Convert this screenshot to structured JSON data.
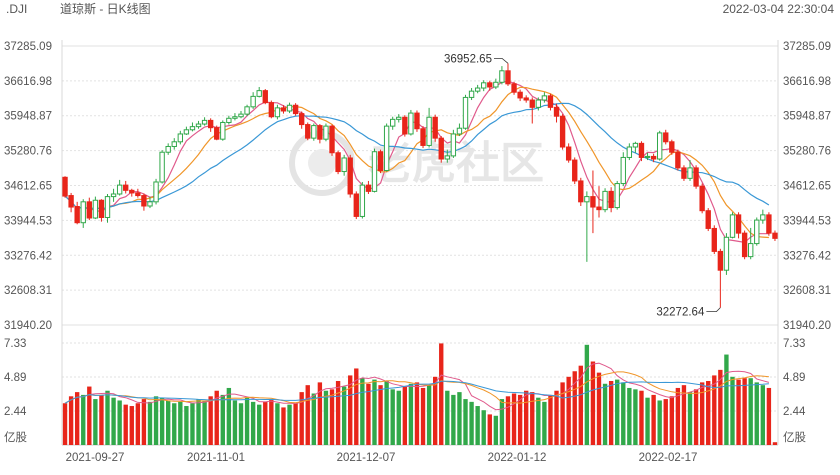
{
  "header": {
    "ticker": ".DJI",
    "name": "道琼斯 - 日K线图",
    "timestamp": "2022-03-04 22:30:04"
  },
  "watermark": "老虎社区",
  "colors": {
    "up": "#31a84a",
    "down": "#e8251a",
    "ma5": "#e05a8c",
    "ma10": "#f0962a",
    "ma20": "#3a98d6",
    "grid": "#e2e2e2",
    "label": "#555555"
  },
  "price_axis": {
    "ticks": [
      "37285.09",
      "36616.98",
      "35948.87",
      "35280.76",
      "34612.65",
      "33944.53",
      "33276.42",
      "32608.31",
      "31940.20"
    ]
  },
  "volume_axis": {
    "ticks": [
      "7.33",
      "4.89",
      "2.44"
    ],
    "unit": "亿股"
  },
  "x_axis": {
    "labels": [
      "2021-09-27",
      "2021-11-01",
      "2021-12-07",
      "2022-01-12",
      "2022-02-17"
    ]
  },
  "annotations": {
    "high": "36952.65",
    "low": "32272.64"
  },
  "chart_data": {
    "type": "candlestick",
    "title": ".DJI 道琼斯 - 日K线图",
    "price_range": [
      31940.2,
      37285.09
    ],
    "volume_range": [
      0,
      7.33
    ],
    "volume_unit": "亿股",
    "moving_averages": [
      "MA5",
      "MA10",
      "MA20"
    ],
    "max_price": 36952.65,
    "min_price": 32272.64,
    "candles": [
      {
        "o": 34770,
        "c": 34410,
        "h": 34790,
        "l": 34380,
        "v": 3.0
      },
      {
        "o": 34420,
        "c": 34200,
        "h": 34470,
        "l": 34100,
        "v": 3.5
      },
      {
        "o": 34210,
        "c": 33900,
        "h": 34300,
        "l": 33870,
        "v": 3.8
      },
      {
        "o": 33900,
        "c": 34300,
        "h": 34350,
        "l": 33800,
        "v": 3.6
      },
      {
        "o": 34300,
        "c": 33990,
        "h": 34380,
        "l": 33950,
        "v": 4.2
      },
      {
        "o": 33990,
        "c": 34330,
        "h": 34400,
        "l": 33970,
        "v": 3.3
      },
      {
        "o": 34330,
        "c": 34000,
        "h": 34350,
        "l": 33920,
        "v": 3.6
      },
      {
        "o": 34000,
        "c": 34400,
        "h": 34450,
        "l": 33900,
        "v": 3.9
      },
      {
        "o": 34400,
        "c": 34450,
        "h": 34550,
        "l": 34300,
        "v": 3.4
      },
      {
        "o": 34450,
        "c": 34620,
        "h": 34720,
        "l": 34420,
        "v": 3.2
      },
      {
        "o": 34620,
        "c": 34520,
        "h": 34700,
        "l": 34460,
        "v": 2.9
      },
      {
        "o": 34520,
        "c": 34470,
        "h": 34550,
        "l": 34400,
        "v": 2.8
      },
      {
        "o": 34470,
        "c": 34420,
        "h": 34550,
        "l": 34380,
        "v": 3.0
      },
      {
        "o": 34420,
        "c": 34220,
        "h": 34460,
        "l": 34130,
        "v": 3.3
      },
      {
        "o": 34220,
        "c": 34300,
        "h": 34400,
        "l": 34180,
        "v": 3.1
      },
      {
        "o": 34300,
        "c": 34680,
        "h": 34740,
        "l": 34250,
        "v": 3.5
      },
      {
        "o": 34680,
        "c": 35250,
        "h": 35290,
        "l": 34650,
        "v": 3.4
      },
      {
        "o": 35250,
        "c": 35360,
        "h": 35420,
        "l": 35200,
        "v": 3.2
      },
      {
        "o": 35360,
        "c": 35450,
        "h": 35520,
        "l": 35300,
        "v": 3.0
      },
      {
        "o": 35450,
        "c": 35600,
        "h": 35660,
        "l": 35400,
        "v": 3.1
      },
      {
        "o": 35600,
        "c": 35680,
        "h": 35740,
        "l": 35580,
        "v": 2.8
      },
      {
        "o": 35680,
        "c": 35740,
        "h": 35820,
        "l": 35650,
        "v": 3.0
      },
      {
        "o": 35740,
        "c": 35790,
        "h": 35850,
        "l": 35700,
        "v": 3.3
      },
      {
        "o": 35790,
        "c": 35860,
        "h": 35920,
        "l": 35760,
        "v": 3.2
      },
      {
        "o": 35860,
        "c": 35720,
        "h": 35900,
        "l": 35640,
        "v": 3.5
      },
      {
        "o": 35720,
        "c": 35500,
        "h": 35760,
        "l": 35480,
        "v": 3.9
      },
      {
        "o": 35500,
        "c": 35820,
        "h": 35860,
        "l": 35470,
        "v": 3.6
      },
      {
        "o": 35820,
        "c": 35900,
        "h": 35950,
        "l": 35780,
        "v": 4.1
      },
      {
        "o": 35900,
        "c": 35930,
        "h": 36000,
        "l": 35860,
        "v": 3.2
      },
      {
        "o": 35930,
        "c": 35980,
        "h": 36040,
        "l": 35900,
        "v": 3.0
      },
      {
        "o": 35980,
        "c": 36120,
        "h": 36160,
        "l": 35940,
        "v": 3.4
      },
      {
        "o": 36120,
        "c": 36320,
        "h": 36400,
        "l": 36080,
        "v": 3.1
      },
      {
        "o": 36320,
        "c": 36430,
        "h": 36500,
        "l": 36300,
        "v": 2.9
      },
      {
        "o": 36430,
        "c": 36200,
        "h": 36460,
        "l": 36170,
        "v": 3.1
      },
      {
        "o": 36200,
        "c": 35930,
        "h": 36240,
        "l": 35900,
        "v": 3.3
      },
      {
        "o": 35930,
        "c": 36100,
        "h": 36160,
        "l": 35880,
        "v": 3.0
      },
      {
        "o": 36100,
        "c": 36040,
        "h": 36150,
        "l": 35990,
        "v": 2.7
      },
      {
        "o": 36040,
        "c": 36150,
        "h": 36200,
        "l": 36000,
        "v": 2.9
      },
      {
        "o": 36150,
        "c": 35990,
        "h": 36190,
        "l": 35950,
        "v": 3.0
      },
      {
        "o": 35990,
        "c": 35780,
        "h": 36030,
        "l": 35700,
        "v": 3.8
      },
      {
        "o": 35780,
        "c": 35520,
        "h": 35820,
        "l": 35480,
        "v": 4.3
      },
      {
        "o": 35520,
        "c": 35760,
        "h": 35800,
        "l": 35470,
        "v": 3.7
      },
      {
        "o": 35760,
        "c": 35500,
        "h": 35790,
        "l": 35420,
        "v": 4.5
      },
      {
        "o": 35500,
        "c": 35750,
        "h": 35800,
        "l": 35460,
        "v": 3.9
      },
      {
        "o": 35750,
        "c": 35240,
        "h": 35780,
        "l": 35180,
        "v": 4.0
      },
      {
        "o": 35240,
        "c": 34880,
        "h": 35280,
        "l": 34830,
        "v": 4.6
      },
      {
        "o": 34880,
        "c": 35140,
        "h": 35200,
        "l": 34800,
        "v": 4.2
      },
      {
        "o": 35140,
        "c": 34450,
        "h": 35200,
        "l": 34380,
        "v": 5.0
      },
      {
        "o": 34450,
        "c": 34020,
        "h": 34500,
        "l": 33970,
        "v": 5.5
      },
      {
        "o": 34020,
        "c": 34620,
        "h": 34680,
        "l": 33980,
        "v": 4.8
      },
      {
        "o": 34620,
        "c": 34500,
        "h": 34700,
        "l": 34450,
        "v": 4.4
      },
      {
        "o": 34500,
        "c": 35260,
        "h": 35320,
        "l": 34480,
        "v": 4.7
      },
      {
        "o": 35260,
        "c": 34900,
        "h": 35300,
        "l": 34850,
        "v": 4.3
      },
      {
        "o": 34900,
        "c": 35750,
        "h": 35800,
        "l": 34880,
        "v": 4.6
      },
      {
        "o": 35750,
        "c": 35880,
        "h": 35930,
        "l": 35680,
        "v": 4.0
      },
      {
        "o": 35880,
        "c": 35920,
        "h": 35980,
        "l": 35820,
        "v": 3.9
      },
      {
        "o": 35920,
        "c": 35600,
        "h": 35960,
        "l": 35550,
        "v": 4.2
      },
      {
        "o": 35600,
        "c": 36000,
        "h": 36060,
        "l": 35570,
        "v": 4.4
      },
      {
        "o": 36000,
        "c": 35700,
        "h": 36050,
        "l": 35640,
        "v": 4.5
      },
      {
        "o": 35700,
        "c": 35380,
        "h": 35750,
        "l": 35330,
        "v": 4.1
      },
      {
        "o": 35380,
        "c": 35920,
        "h": 36100,
        "l": 35340,
        "v": 4.3
      },
      {
        "o": 35920,
        "c": 35520,
        "h": 35970,
        "l": 35450,
        "v": 4.9
      },
      {
        "o": 35520,
        "c": 35120,
        "h": 35560,
        "l": 35050,
        "v": 7.3
      },
      {
        "o": 35120,
        "c": 35180,
        "h": 35300,
        "l": 35050,
        "v": 3.9
      },
      {
        "o": 35180,
        "c": 35600,
        "h": 35680,
        "l": 35140,
        "v": 3.6
      },
      {
        "o": 35600,
        "c": 35710,
        "h": 35800,
        "l": 35560,
        "v": 3.8
      },
      {
        "o": 35710,
        "c": 36300,
        "h": 36350,
        "l": 35680,
        "v": 3.3
      },
      {
        "o": 36300,
        "c": 36420,
        "h": 36480,
        "l": 36250,
        "v": 3.1
      },
      {
        "o": 36420,
        "c": 36480,
        "h": 36540,
        "l": 36380,
        "v": 2.8
      },
      {
        "o": 36480,
        "c": 36580,
        "h": 36630,
        "l": 36420,
        "v": 2.5
      },
      {
        "o": 36580,
        "c": 36500,
        "h": 36620,
        "l": 36430,
        "v": 2.2
      },
      {
        "o": 36500,
        "c": 36590,
        "h": 36660,
        "l": 36460,
        "v": 2.1
      },
      {
        "o": 36590,
        "c": 36810,
        "h": 36900,
        "l": 36550,
        "v": 3.3
      },
      {
        "o": 36810,
        "c": 36560,
        "h": 36952.65,
        "l": 36520,
        "v": 3.5
      },
      {
        "o": 36560,
        "c": 36400,
        "h": 36600,
        "l": 36350,
        "v": 3.7
      },
      {
        "o": 36400,
        "c": 36290,
        "h": 36450,
        "l": 36230,
        "v": 3.6
      },
      {
        "o": 36290,
        "c": 36250,
        "h": 36340,
        "l": 36200,
        "v": 3.9
      },
      {
        "o": 36250,
        "c": 36110,
        "h": 36300,
        "l": 35800,
        "v": 3.8
      },
      {
        "o": 36110,
        "c": 36250,
        "h": 36300,
        "l": 36050,
        "v": 3.4
      },
      {
        "o": 36250,
        "c": 36330,
        "h": 36400,
        "l": 36200,
        "v": 3.1
      },
      {
        "o": 36330,
        "c": 36110,
        "h": 36370,
        "l": 36050,
        "v": 3.6
      },
      {
        "o": 36110,
        "c": 35940,
        "h": 36180,
        "l": 35820,
        "v": 3.9
      },
      {
        "o": 35940,
        "c": 35350,
        "h": 35980,
        "l": 35300,
        "v": 4.5
      },
      {
        "o": 35350,
        "c": 35100,
        "h": 35420,
        "l": 35050,
        "v": 4.9
      },
      {
        "o": 35100,
        "c": 34700,
        "h": 35150,
        "l": 34640,
        "v": 5.3
      },
      {
        "o": 34700,
        "c": 34300,
        "h": 34760,
        "l": 34220,
        "v": 5.7
      },
      {
        "o": 34300,
        "c": 34400,
        "h": 34500,
        "l": 33150,
        "v": 7.2
      },
      {
        "o": 34400,
        "c": 34200,
        "h": 34900,
        "l": 33700,
        "v": 6.0
      },
      {
        "o": 34200,
        "c": 34150,
        "h": 34600,
        "l": 34000,
        "v": 5.2
      },
      {
        "o": 34150,
        "c": 34500,
        "h": 34560,
        "l": 34100,
        "v": 4.4
      },
      {
        "o": 34500,
        "c": 34190,
        "h": 34580,
        "l": 34100,
        "v": 4.6
      },
      {
        "o": 34190,
        "c": 34650,
        "h": 34700,
        "l": 34150,
        "v": 4.7
      },
      {
        "o": 34650,
        "c": 35150,
        "h": 35250,
        "l": 34600,
        "v": 4.5
      },
      {
        "o": 35150,
        "c": 35350,
        "h": 35420,
        "l": 35100,
        "v": 4.1
      },
      {
        "o": 35350,
        "c": 35420,
        "h": 35450,
        "l": 35240,
        "v": 4.0
      },
      {
        "o": 35420,
        "c": 35150,
        "h": 35460,
        "l": 35080,
        "v": 3.9
      },
      {
        "o": 35150,
        "c": 35170,
        "h": 35240,
        "l": 35100,
        "v": 3.4
      },
      {
        "o": 35170,
        "c": 35120,
        "h": 35220,
        "l": 35060,
        "v": 3.6
      },
      {
        "o": 35120,
        "c": 35620,
        "h": 35660,
        "l": 35090,
        "v": 3.2
      },
      {
        "o": 35620,
        "c": 35450,
        "h": 35680,
        "l": 35400,
        "v": 3.3
      },
      {
        "o": 35450,
        "c": 35250,
        "h": 35490,
        "l": 35200,
        "v": 3.5
      },
      {
        "o": 35250,
        "c": 34950,
        "h": 35300,
        "l": 34900,
        "v": 4.1
      },
      {
        "o": 34950,
        "c": 34750,
        "h": 35000,
        "l": 34700,
        "v": 4.3
      },
      {
        "o": 34750,
        "c": 34950,
        "h": 35100,
        "l": 34700,
        "v": 3.8
      },
      {
        "o": 34950,
        "c": 34600,
        "h": 35000,
        "l": 34550,
        "v": 4.0
      },
      {
        "o": 34600,
        "c": 34130,
        "h": 34650,
        "l": 34080,
        "v": 4.5
      },
      {
        "o": 34130,
        "c": 33790,
        "h": 34180,
        "l": 33740,
        "v": 4.6
      },
      {
        "o": 33790,
        "c": 33350,
        "h": 33850,
        "l": 33300,
        "v": 5.0
      },
      {
        "o": 33350,
        "c": 32990,
        "h": 33400,
        "l": 32272.64,
        "v": 5.4
      },
      {
        "o": 32990,
        "c": 33620,
        "h": 33700,
        "l": 32900,
        "v": 6.5
      },
      {
        "o": 33620,
        "c": 34050,
        "h": 34100,
        "l": 33600,
        "v": 4.9
      },
      {
        "o": 34050,
        "c": 33700,
        "h": 34100,
        "l": 33600,
        "v": 4.7
      },
      {
        "o": 33700,
        "c": 33250,
        "h": 33750,
        "l": 33200,
        "v": 4.8
      },
      {
        "o": 33250,
        "c": 33500,
        "h": 33800,
        "l": 33200,
        "v": 4.8
      },
      {
        "o": 33500,
        "c": 33950,
        "h": 34000,
        "l": 33460,
        "v": 4.5
      },
      {
        "o": 33950,
        "c": 34050,
        "h": 34150,
        "l": 33880,
        "v": 4.3
      },
      {
        "o": 34050,
        "c": 33700,
        "h": 34100,
        "l": 33650,
        "v": 4.1
      },
      {
        "o": 33700,
        "c": 33600,
        "h": 33750,
        "l": 33550,
        "v": 0.2
      }
    ]
  }
}
